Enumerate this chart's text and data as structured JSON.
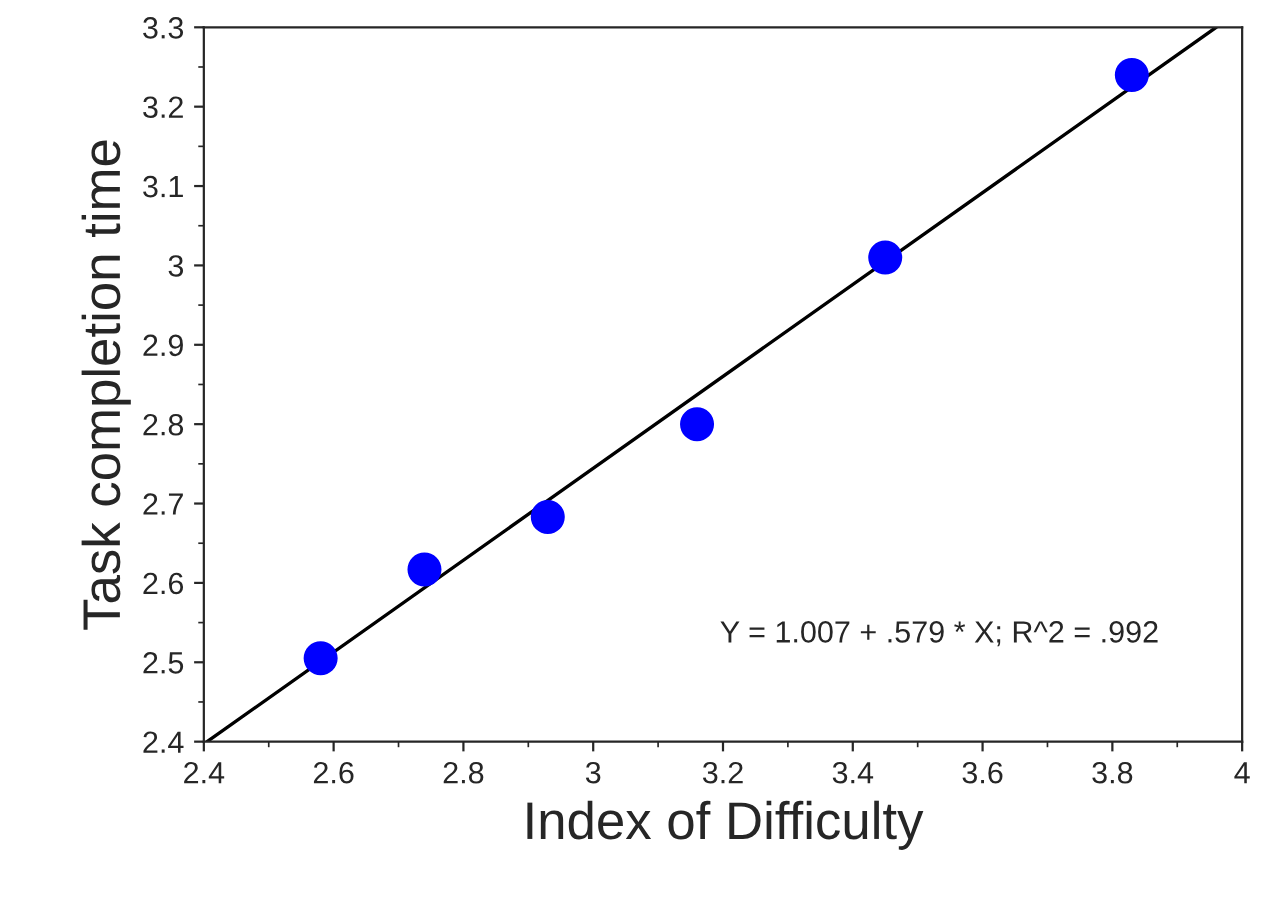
{
  "chart_data": {
    "type": "scatter",
    "xlabel": "Index of Difficulty",
    "ylabel": "Task completion time",
    "series": [
      {
        "color": "#0000ff",
        "marker": "circle",
        "x": [
          2.58,
          2.74,
          2.93,
          3.16,
          3.45,
          3.83
        ],
        "values": [
          2.505,
          2.617,
          2.683,
          2.8,
          3.01,
          3.24
        ]
      },
      {
        "type": "line",
        "color": "#000000",
        "x": [
          2.405,
          3.96
        ],
        "values": [
          2.4,
          3.3
        ]
      }
    ],
    "xlim": [
      2.4,
      4
    ],
    "ylim": [
      2.4,
      3.3
    ],
    "xticks": [
      2.4,
      2.6,
      2.8,
      3,
      3.2,
      3.4,
      3.6,
      3.8,
      4
    ],
    "yticks": [
      2.4,
      2.5,
      2.6,
      2.7,
      2.8,
      2.9,
      3,
      3.1,
      3.2,
      3.3
    ],
    "annotations": [
      "Y = 1.007 + .579 * X; R^2 = .992"
    ],
    "grid": false,
    "legend": false
  }
}
